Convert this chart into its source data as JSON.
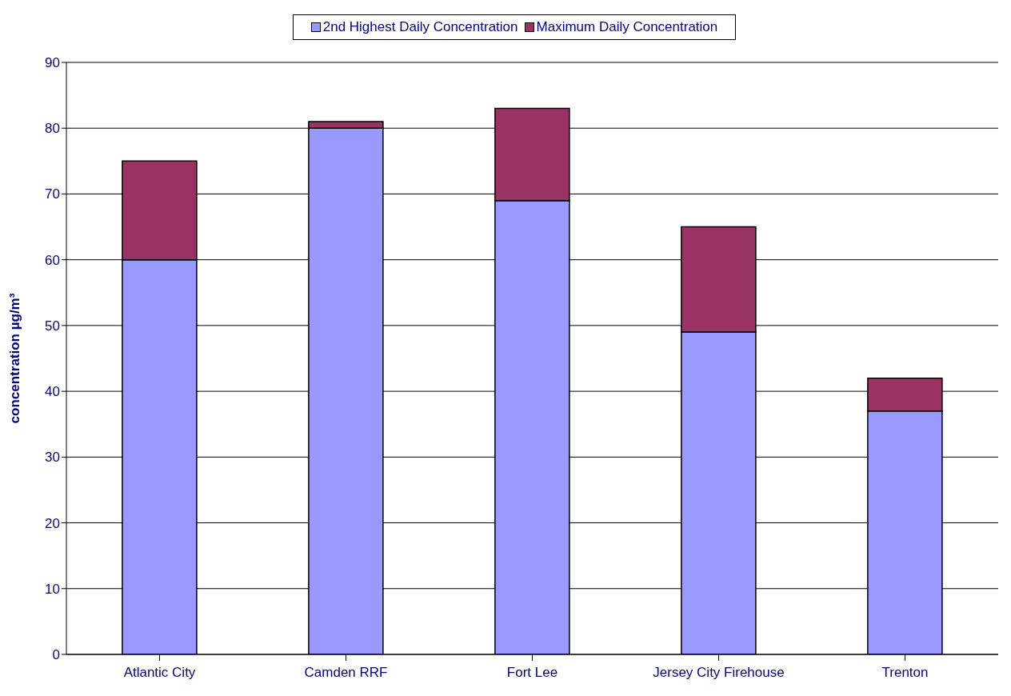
{
  "chart_data": {
    "type": "bar",
    "stacked": true,
    "categories": [
      "Atlantic City",
      "Camden RRF",
      "Fort Lee",
      "Jersey City Firehouse",
      "Trenton"
    ],
    "series": [
      {
        "name": "2nd Highest Daily Concentration",
        "color": "#9999ff",
        "values": [
          60,
          80,
          69,
          49,
          37
        ]
      },
      {
        "name": "Maximum Daily Concentration",
        "color": "#993366",
        "values": [
          15,
          1,
          14,
          16,
          5
        ]
      }
    ],
    "ylabel": "concentration µg/m³",
    "ylim": [
      0,
      90
    ],
    "yticks": [
      0,
      10,
      20,
      30,
      40,
      50,
      60,
      70,
      80,
      90
    ],
    "grid": "y",
    "legend": "top"
  }
}
